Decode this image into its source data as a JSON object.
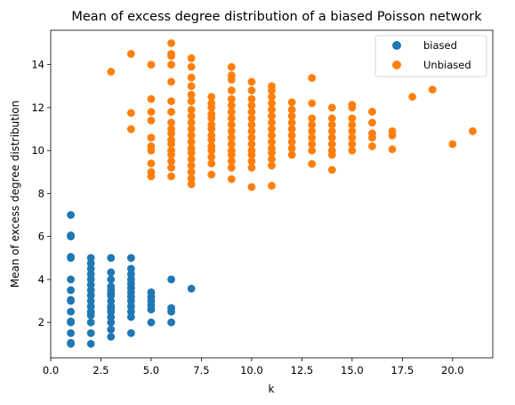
{
  "chart_data": {
    "type": "scatter",
    "title": "Mean of excess degree distribution of a biased Poisson network",
    "xlabel": "k",
    "ylabel": "Mean of excess degree distribution",
    "xlim": [
      0.0,
      22.0
    ],
    "ylim": [
      0.35,
      15.6
    ],
    "xticks": [
      "0.0",
      "2.5",
      "5.0",
      "7.5",
      "10.0",
      "12.5",
      "15.0",
      "17.5",
      "20.0"
    ],
    "xtick_values": [
      0,
      2.5,
      5,
      7.5,
      10,
      12.5,
      15,
      17.5,
      20
    ],
    "yticks": [
      "2",
      "4",
      "6",
      "8",
      "10",
      "12",
      "14"
    ],
    "ytick_values": [
      2,
      4,
      6,
      8,
      10,
      12,
      14
    ],
    "grid": false,
    "legend_position": "top-right",
    "series": [
      {
        "name": "biased",
        "color": "#1f77b4",
        "points": [
          [
            1,
            1.0
          ],
          [
            1,
            1.05
          ],
          [
            1,
            1.5
          ],
          [
            1,
            2.0
          ],
          [
            1,
            2.05
          ],
          [
            1,
            2.5
          ],
          [
            1,
            3.0
          ],
          [
            1,
            3.05
          ],
          [
            1,
            3.5
          ],
          [
            1,
            4.0
          ],
          [
            1,
            5.0
          ],
          [
            1,
            5.05
          ],
          [
            1,
            6.0
          ],
          [
            1,
            6.05
          ],
          [
            1,
            7.0
          ],
          [
            2,
            1.0
          ],
          [
            2,
            1.5
          ],
          [
            2,
            2.0
          ],
          [
            2,
            2.33
          ],
          [
            2,
            2.5
          ],
          [
            2,
            2.75
          ],
          [
            2,
            3.0
          ],
          [
            2,
            3.25
          ],
          [
            2,
            3.5
          ],
          [
            2,
            3.75
          ],
          [
            2,
            4.0
          ],
          [
            2,
            4.25
          ],
          [
            2,
            4.5
          ],
          [
            2,
            4.75
          ],
          [
            2,
            5.0
          ],
          [
            3,
            1.33
          ],
          [
            3,
            1.67
          ],
          [
            3,
            2.0
          ],
          [
            3,
            2.25
          ],
          [
            3,
            2.5
          ],
          [
            3,
            2.67
          ],
          [
            3,
            2.75
          ],
          [
            3,
            3.0
          ],
          [
            3,
            3.25
          ],
          [
            3,
            3.33
          ],
          [
            3,
            3.5
          ],
          [
            3,
            3.67
          ],
          [
            3,
            4.0
          ],
          [
            3,
            4.33
          ],
          [
            3,
            5.0
          ],
          [
            4,
            1.5
          ],
          [
            4,
            2.25
          ],
          [
            4,
            2.5
          ],
          [
            4,
            2.75
          ],
          [
            4,
            3.0
          ],
          [
            4,
            3.2
          ],
          [
            4,
            3.4
          ],
          [
            4,
            3.6
          ],
          [
            4,
            3.8
          ],
          [
            4,
            4.0
          ],
          [
            4,
            4.25
          ],
          [
            4,
            4.5
          ],
          [
            4,
            5.0
          ],
          [
            5,
            2.0
          ],
          [
            5,
            2.6
          ],
          [
            5,
            2.8
          ],
          [
            5,
            3.0
          ],
          [
            5,
            3.2
          ],
          [
            5,
            3.4
          ],
          [
            6,
            2.0
          ],
          [
            6,
            2.5
          ],
          [
            6,
            2.67
          ],
          [
            6,
            4.0
          ],
          [
            7,
            3.57
          ]
        ]
      },
      {
        "name": "Unbiased",
        "color": "#ff7f0e",
        "points": [
          [
            3,
            13.67
          ],
          [
            4,
            11.0
          ],
          [
            4,
            11.75
          ],
          [
            4,
            14.5
          ],
          [
            5,
            8.8
          ],
          [
            5,
            9.0
          ],
          [
            5,
            9.4
          ],
          [
            5,
            10.0
          ],
          [
            5,
            10.2
          ],
          [
            5,
            10.6
          ],
          [
            5,
            11.4
          ],
          [
            5,
            11.8
          ],
          [
            5,
            12.4
          ],
          [
            5,
            14.0
          ],
          [
            6,
            8.8
          ],
          [
            6,
            9.2
          ],
          [
            6,
            9.5
          ],
          [
            6,
            9.8
          ],
          [
            6,
            10.0
          ],
          [
            6,
            10.3
          ],
          [
            6,
            10.5
          ],
          [
            6,
            10.8
          ],
          [
            6,
            11.0
          ],
          [
            6,
            11.3
          ],
          [
            6,
            11.8
          ],
          [
            6,
            12.3
          ],
          [
            6,
            13.2
          ],
          [
            6,
            14.0
          ],
          [
            6,
            14.4
          ],
          [
            6,
            14.5
          ],
          [
            6,
            15.0
          ],
          [
            7,
            8.43
          ],
          [
            7,
            8.7
          ],
          [
            7,
            9.0
          ],
          [
            7,
            9.3
          ],
          [
            7,
            9.6
          ],
          [
            7,
            9.9
          ],
          [
            7,
            10.1
          ],
          [
            7,
            10.4
          ],
          [
            7,
            10.7
          ],
          [
            7,
            11.0
          ],
          [
            7,
            11.3
          ],
          [
            7,
            11.6
          ],
          [
            7,
            11.9
          ],
          [
            7,
            12.3
          ],
          [
            7,
            12.6
          ],
          [
            7,
            13.0
          ],
          [
            7,
            13.4
          ],
          [
            7,
            13.9
          ],
          [
            7,
            14.3
          ],
          [
            8,
            8.88
          ],
          [
            8,
            9.4
          ],
          [
            8,
            9.7
          ],
          [
            8,
            10.0
          ],
          [
            8,
            10.2
          ],
          [
            8,
            10.5
          ],
          [
            8,
            10.7
          ],
          [
            8,
            11.0
          ],
          [
            8,
            11.2
          ],
          [
            8,
            11.5
          ],
          [
            8,
            11.7
          ],
          [
            8,
            12.0
          ],
          [
            8,
            12.2
          ],
          [
            8,
            12.5
          ],
          [
            9,
            8.67
          ],
          [
            9,
            9.2
          ],
          [
            9,
            9.5
          ],
          [
            9,
            9.8
          ],
          [
            9,
            10.0
          ],
          [
            9,
            10.3
          ],
          [
            9,
            10.6
          ],
          [
            9,
            10.9
          ],
          [
            9,
            11.2
          ],
          [
            9,
            11.5
          ],
          [
            9,
            11.8
          ],
          [
            9,
            12.1
          ],
          [
            9,
            12.4
          ],
          [
            9,
            12.8
          ],
          [
            9,
            13.3
          ],
          [
            9,
            13.5
          ],
          [
            9,
            13.89
          ],
          [
            10,
            8.3
          ],
          [
            10,
            9.2
          ],
          [
            10,
            9.5
          ],
          [
            10,
            9.8
          ],
          [
            10,
            10.0
          ],
          [
            10,
            10.3
          ],
          [
            10,
            10.6
          ],
          [
            10,
            10.9
          ],
          [
            10,
            11.2
          ],
          [
            10,
            11.5
          ],
          [
            10,
            11.8
          ],
          [
            10,
            12.1
          ],
          [
            10,
            12.4
          ],
          [
            10,
            12.8
          ],
          [
            10,
            13.2
          ],
          [
            11,
            8.36
          ],
          [
            11,
            9.3
          ],
          [
            11,
            9.6
          ],
          [
            11,
            9.9
          ],
          [
            11,
            10.1
          ],
          [
            11,
            10.4
          ],
          [
            11,
            10.7
          ],
          [
            11,
            11.0
          ],
          [
            11,
            11.3
          ],
          [
            11,
            11.6
          ],
          [
            11,
            11.9
          ],
          [
            11,
            12.2
          ],
          [
            11,
            12.5
          ],
          [
            11,
            12.8
          ],
          [
            11,
            13.0
          ],
          [
            12,
            9.8
          ],
          [
            12,
            10.1
          ],
          [
            12,
            10.4
          ],
          [
            12,
            10.7
          ],
          [
            12,
            11.0
          ],
          [
            12,
            11.3
          ],
          [
            12,
            11.6
          ],
          [
            12,
            11.9
          ],
          [
            12,
            12.25
          ],
          [
            13,
            9.38
          ],
          [
            13,
            10.0
          ],
          [
            13,
            10.3
          ],
          [
            13,
            10.6
          ],
          [
            13,
            10.9
          ],
          [
            13,
            11.2
          ],
          [
            13,
            11.5
          ],
          [
            13,
            12.2
          ],
          [
            13,
            13.38
          ],
          [
            14,
            9.1
          ],
          [
            14,
            9.8
          ],
          [
            14,
            10.0
          ],
          [
            14,
            10.3
          ],
          [
            14,
            10.6
          ],
          [
            14,
            10.9
          ],
          [
            14,
            11.2
          ],
          [
            14,
            11.5
          ],
          [
            14,
            12.0
          ],
          [
            15,
            10.0
          ],
          [
            15,
            10.3
          ],
          [
            15,
            10.6
          ],
          [
            15,
            10.9
          ],
          [
            15,
            11.2
          ],
          [
            15,
            11.5
          ],
          [
            15,
            12.0
          ],
          [
            15,
            12.13
          ],
          [
            16,
            10.2
          ],
          [
            16,
            10.6
          ],
          [
            16,
            10.8
          ],
          [
            16,
            11.3
          ],
          [
            16,
            11.81
          ],
          [
            17,
            10.06
          ],
          [
            17,
            10.7
          ],
          [
            17,
            10.9
          ],
          [
            18,
            12.5
          ],
          [
            19,
            12.84
          ],
          [
            20,
            10.3
          ],
          [
            21,
            10.9
          ]
        ]
      }
    ]
  }
}
